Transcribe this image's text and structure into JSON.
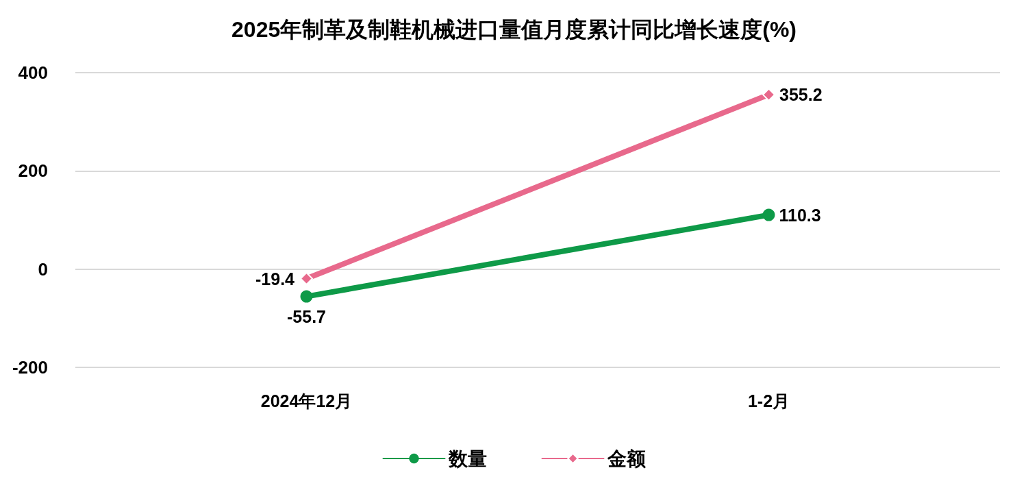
{
  "chart_data": {
    "type": "line",
    "title": "2025年制革及制鞋机械进口量值月度累计同比增长速度(%)",
    "categories": [
      "2024年12月",
      "1-2月"
    ],
    "series": [
      {
        "name": "数量",
        "color": "#0e9a48",
        "values": [
          -55.7,
          110.3
        ],
        "marker": "circle"
      },
      {
        "name": "金额",
        "color": "#e8698c",
        "values": [
          -19.4,
          355.2
        ],
        "marker": "diamond"
      }
    ],
    "ylim": [
      -200,
      400
    ],
    "yticks": [
      -200,
      0,
      200,
      400
    ],
    "grid": "y",
    "legend": "bottom",
    "data_labels": true,
    "line_style": "solid"
  }
}
